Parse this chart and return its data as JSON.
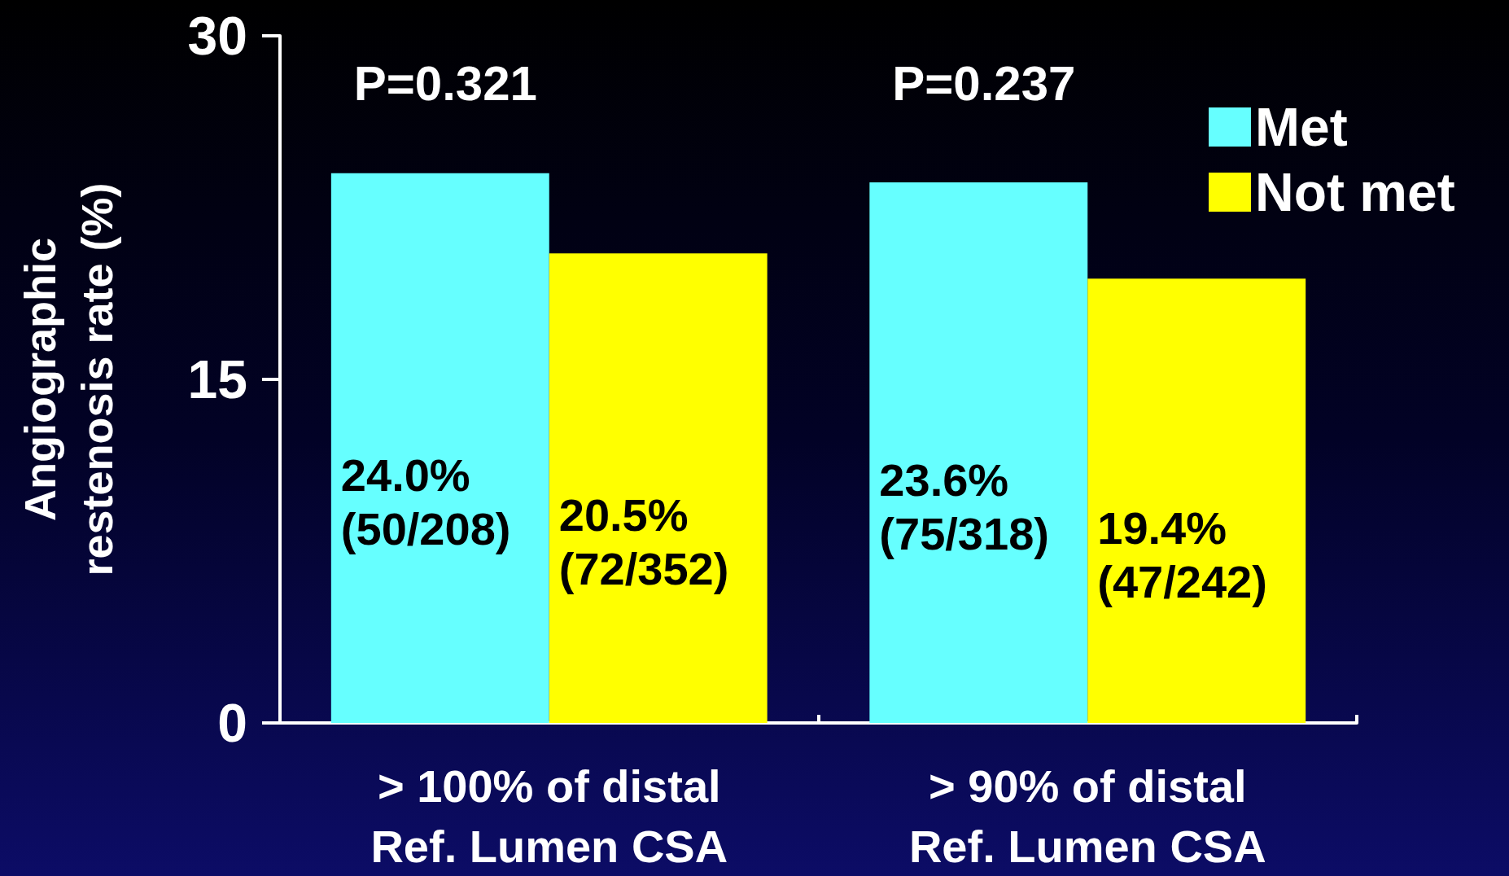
{
  "chart_data": {
    "type": "bar",
    "ylabel": "Angiographic\nrestenosis rate (%)",
    "categories": [
      "> 100% of distal\nRef. Lumen CSA",
      "> 90% of distal\nRef. Lumen CSA"
    ],
    "series": [
      {
        "name": "Met",
        "color": "#66ffff",
        "values": [
          24.0,
          23.6
        ],
        "value_labels": [
          "24.0%\n(50/208)",
          "23.6%\n(75/318)"
        ]
      },
      {
        "name": "Not met",
        "color": "#ffff00",
        "values": [
          20.5,
          19.4
        ],
        "value_labels": [
          "20.5%\n(72/352)",
          "19.4%\n(47/242)"
        ]
      }
    ],
    "annotations": [
      "P=0.321",
      "P=0.237"
    ],
    "ylim": [
      0,
      30
    ],
    "yticks": [
      0,
      15,
      30
    ],
    "grid": false,
    "legend": "top right"
  }
}
